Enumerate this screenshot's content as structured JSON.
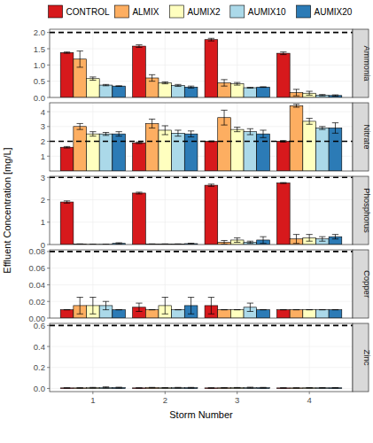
{
  "chart_data": [
    {
      "type": "bar",
      "title": "Ammonia",
      "categories": [
        "1",
        "2",
        "3",
        "4"
      ],
      "legend": "top",
      "grid": true,
      "tick_labels": "y",
      "ylim": [
        0,
        2.1
      ],
      "yticks": [
        {
          "value": 0,
          "label": "0.0"
        },
        {
          "value": 0.5,
          "label": "0.5"
        },
        {
          "value": 1,
          "label": "1.0"
        },
        {
          "value": 1.5,
          "label": "1.5"
        },
        {
          "value": 2,
          "label": "2.0"
        }
      ],
      "reference_line": 2,
      "series": [
        {
          "name": "CONTROL",
          "color": "#d7191c",
          "values": [
            1.38,
            1.58,
            1.78,
            1.36
          ],
          "errors": [
            0.02,
            0.04,
            0.04,
            0.04
          ]
        },
        {
          "name": "ALMIX",
          "color": "#fdae61",
          "values": [
            1.18,
            0.6,
            0.45,
            0.15
          ],
          "errors": [
            0.25,
            0.1,
            0.1,
            0.1
          ]
        },
        {
          "name": "AUMIX2",
          "color": "#ffffbf",
          "values": [
            0.58,
            0.45,
            0.42,
            0.13
          ],
          "errors": [
            0.05,
            0.03,
            0.04,
            0.06
          ]
        },
        {
          "name": "AUMIX10",
          "color": "#abd9e9",
          "values": [
            0.38,
            0.37,
            0.3,
            0.07
          ],
          "errors": [
            0.02,
            0.03,
            0.01,
            0.02
          ]
        },
        {
          "name": "AUMIX20",
          "color": "#2c7bb6",
          "values": [
            0.35,
            0.32,
            0.32,
            0.06
          ],
          "errors": [
            0.01,
            0.03,
            0.01,
            0.02
          ]
        }
      ]
    },
    {
      "type": "bar",
      "title": "Nitrate",
      "categories": [
        "1",
        "2",
        "3",
        "4"
      ],
      "grid": true,
      "tick_labels": "y",
      "ylim": [
        0,
        4.6
      ],
      "yticks": [
        1,
        2,
        3,
        4
      ],
      "reference_line": 2,
      "series": [
        {
          "name": "CONTROL",
          "color": "#d7191c",
          "values": [
            1.6,
            1.9,
            2.0,
            2.0
          ],
          "errors": [
            0.05,
            0.05,
            0.02,
            0.05
          ]
        },
        {
          "name": "ALMIX",
          "color": "#fdae61",
          "values": [
            3.0,
            3.2,
            3.6,
            4.4
          ],
          "errors": [
            0.2,
            0.3,
            0.5,
            0.1
          ]
        },
        {
          "name": "AUMIX2",
          "color": "#ffffbf",
          "values": [
            2.5,
            2.75,
            2.8,
            3.35
          ],
          "errors": [
            0.15,
            0.3,
            0.15,
            0.2
          ]
        },
        {
          "name": "AUMIX10",
          "color": "#abd9e9",
          "values": [
            2.5,
            2.55,
            2.65,
            2.9
          ],
          "errors": [
            0.1,
            0.2,
            0.2,
            0.1
          ]
        },
        {
          "name": "AUMIX20",
          "color": "#2c7bb6",
          "values": [
            2.5,
            2.5,
            2.5,
            2.9
          ],
          "errors": [
            0.15,
            0.2,
            0.25,
            0.35
          ]
        }
      ]
    },
    {
      "type": "bar",
      "title": "Phosphorus",
      "categories": [
        "1",
        "2",
        "3",
        "4"
      ],
      "grid": true,
      "tick_labels": "y",
      "y_label": "Effluent Concentration [mg/L]",
      "ylim": [
        0,
        3.05
      ],
      "yticks": [
        0,
        1,
        2,
        3
      ],
      "reference_line": 3,
      "series": [
        {
          "name": "CONTROL",
          "color": "#d7191c",
          "values": [
            1.9,
            2.3,
            2.65,
            2.75
          ],
          "errors": [
            0.05,
            0.04,
            0.05,
            0.02
          ]
        },
        {
          "name": "ALMIX",
          "color": "#fdae61",
          "values": [
            0.02,
            0.02,
            0.1,
            0.25
          ],
          "errors": [
            0.01,
            0.01,
            0.08,
            0.2
          ]
        },
        {
          "name": "AUMIX2",
          "color": "#ffffbf",
          "values": [
            0.01,
            0.02,
            0.2,
            0.3
          ],
          "errors": [
            0.01,
            0.01,
            0.1,
            0.15
          ]
        },
        {
          "name": "AUMIX10",
          "color": "#abd9e9",
          "values": [
            0.01,
            0.02,
            0.1,
            0.25
          ],
          "errors": [
            0.01,
            0.01,
            0.05,
            0.1
          ]
        },
        {
          "name": "AUMIX20",
          "color": "#2c7bb6",
          "values": [
            0.05,
            0.04,
            0.2,
            0.35
          ],
          "errors": [
            0.03,
            0.02,
            0.15,
            0.1
          ]
        }
      ]
    },
    {
      "type": "bar",
      "title": "Copper",
      "categories": [
        "1",
        "2",
        "3",
        "4"
      ],
      "grid": true,
      "tick_labels": "y",
      "ylim": [
        0,
        0.082
      ],
      "yticks": [
        {
          "value": 0,
          "label": "0.00"
        },
        {
          "value": 0.02,
          "label": "0.02"
        },
        {
          "value": 0.04,
          "label": "0.04"
        },
        {
          "value": 0.06,
          "label": "0.06"
        },
        {
          "value": 0.08,
          "label": "0.08"
        }
      ],
      "reference_line": 0.08,
      "series": [
        {
          "name": "CONTROL",
          "color": "#d7191c",
          "values": [
            0.01,
            0.013,
            0.015,
            0.01
          ],
          "errors": [
            0,
            0.005,
            0.01,
            0
          ]
        },
        {
          "name": "ALMIX",
          "color": "#fdae61",
          "values": [
            0.015,
            0.01,
            0.01,
            0.01
          ],
          "errors": [
            0.01,
            0,
            0,
            0
          ]
        },
        {
          "name": "AUMIX2",
          "color": "#ffffbf",
          "values": [
            0.015,
            0.015,
            0.01,
            0.01
          ],
          "errors": [
            0.01,
            0.01,
            0,
            0
          ]
        },
        {
          "name": "AUMIX10",
          "color": "#abd9e9",
          "values": [
            0.015,
            0.01,
            0.013,
            0.01
          ],
          "errors": [
            0.005,
            0,
            0.005,
            0
          ]
        },
        {
          "name": "AUMIX20",
          "color": "#2c7bb6",
          "values": [
            0.01,
            0.015,
            0.01,
            0.01
          ],
          "errors": [
            0,
            0.01,
            0,
            0
          ]
        }
      ]
    },
    {
      "type": "bar",
      "title": "Zinc",
      "categories": [
        "1",
        "2",
        "3",
        "4"
      ],
      "grid": true,
      "x_label": "Storm Number",
      "ylim": [
        -0.03,
        0.62
      ],
      "yticks": [
        {
          "value": 0,
          "label": "0.0"
        },
        {
          "value": 0.2,
          "label": "0.2"
        },
        {
          "value": 0.4,
          "label": "0.4"
        },
        {
          "value": 0.6,
          "label": "0.6"
        }
      ],
      "reference_line": 0.6,
      "series": [
        {
          "name": "CONTROL",
          "color": "#d7191c",
          "values": [
            0.005,
            0.005,
            0.005,
            0.005
          ],
          "errors": [
            0.001,
            0.001,
            0.001,
            0.001
          ]
        },
        {
          "name": "ALMIX",
          "color": "#fdae61",
          "values": [
            0.005,
            0.008,
            0.006,
            0.005
          ],
          "errors": [
            0.002,
            0.002,
            0.002,
            0.001
          ]
        },
        {
          "name": "AUMIX2",
          "color": "#ffffbf",
          "values": [
            0.007,
            0.006,
            0.007,
            0.006
          ],
          "errors": [
            0.003,
            0.002,
            0.002,
            0.002
          ]
        },
        {
          "name": "AUMIX10",
          "color": "#abd9e9",
          "values": [
            0.01,
            0.007,
            0.008,
            0.006
          ],
          "errors": [
            0.005,
            0.003,
            0.004,
            0.002
          ]
        },
        {
          "name": "AUMIX20",
          "color": "#2c7bb6",
          "values": [
            0.008,
            0.007,
            0.007,
            0.006
          ],
          "errors": [
            0.004,
            0.003,
            0.003,
            0.002
          ]
        }
      ]
    }
  ]
}
